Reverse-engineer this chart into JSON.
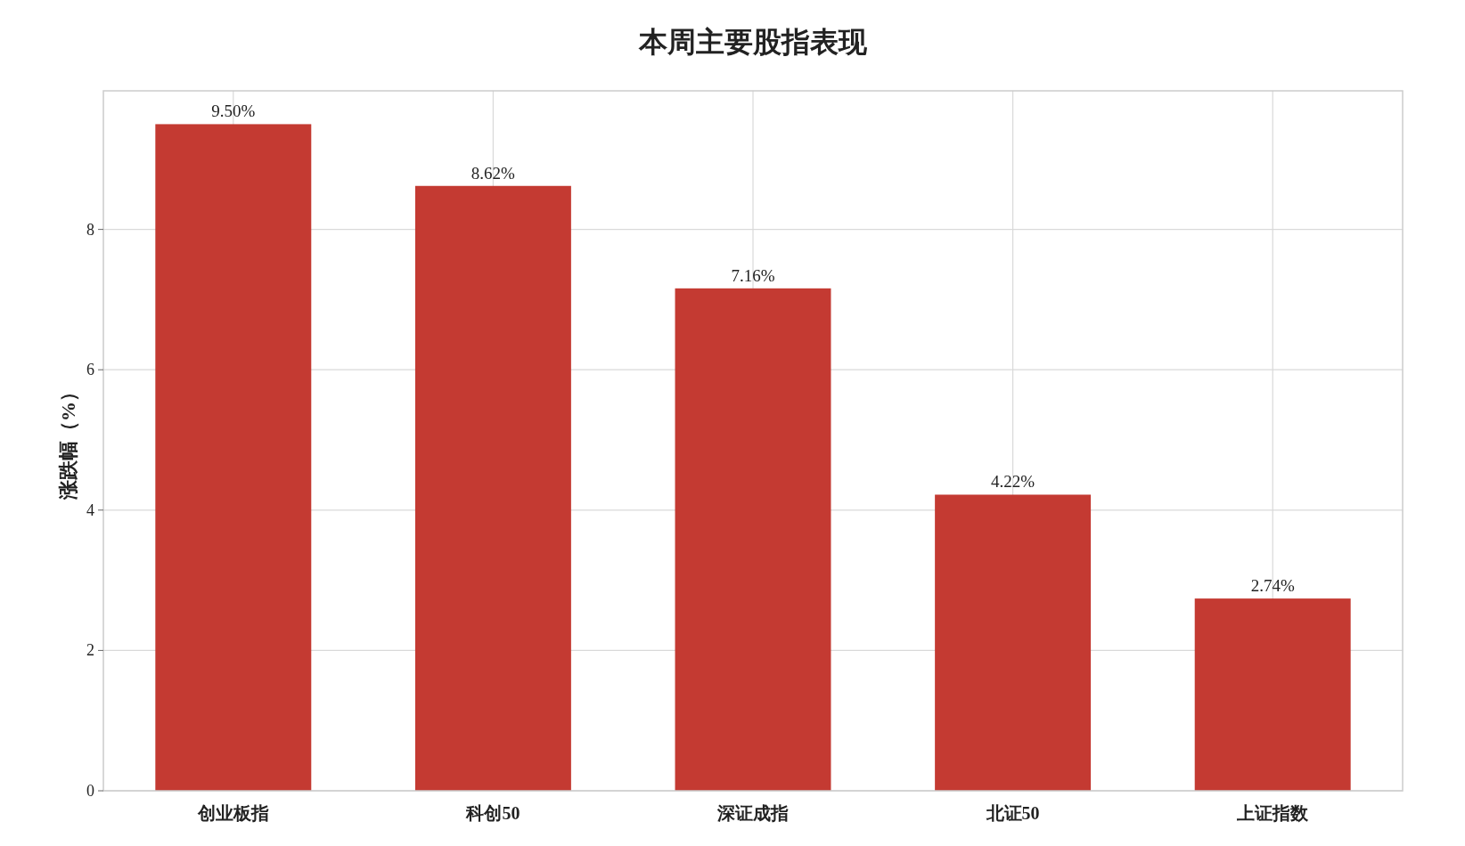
{
  "chart_data": {
    "type": "bar",
    "title": "本周主要股指表现",
    "ylabel": "涨跌幅（%）",
    "categories": [
      "创业板指",
      "科创50",
      "深证成指",
      "北证50",
      "上证指数"
    ],
    "values": [
      9.5,
      8.62,
      7.16,
      4.22,
      2.74
    ],
    "value_labels": [
      "9.50%",
      "8.62%",
      "7.16%",
      "4.22%",
      "2.74%"
    ],
    "color": "#c43a32",
    "ylim": [
      0,
      9.975
    ],
    "yticks": [
      0,
      2,
      4,
      6,
      8
    ],
    "grid": true
  }
}
